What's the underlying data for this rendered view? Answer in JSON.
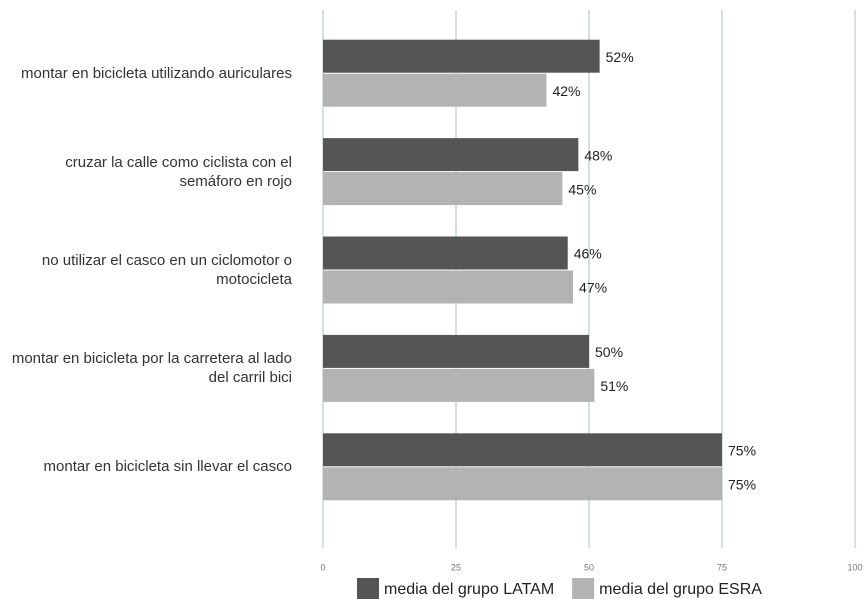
{
  "chart_data": {
    "type": "bar",
    "orientation": "horizontal",
    "categories": [
      "montar en bicicleta utilizando auriculares",
      "cruzar la calle como ciclista con el semáforo en rojo",
      "no utilizar el casco en un ciclomotor o motocicleta",
      "montar en bicicleta por la carretera al lado del carril bici",
      "montar en bicicleta sin llevar el casco"
    ],
    "series": [
      {
        "name": "media del grupo LATAM",
        "color": "#555555",
        "values": [
          52,
          48,
          46,
          50,
          75
        ],
        "value_labels": [
          "52%",
          "48%",
          "46%",
          "50%",
          "75%"
        ]
      },
      {
        "name": "media del grupo ESRA",
        "color": "#b3b3b3",
        "values": [
          42,
          45,
          47,
          51,
          75
        ],
        "value_labels": [
          "42%",
          "45%",
          "47%",
          "51%",
          "75%"
        ]
      }
    ],
    "xlim": [
      0,
      100
    ],
    "xticks": [
      0,
      25,
      50,
      75,
      100
    ],
    "grid": true,
    "legend": "bottom"
  }
}
